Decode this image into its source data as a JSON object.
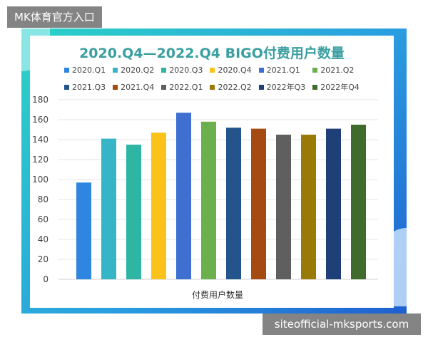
{
  "watermarks": {
    "top": "MK体育官方入口",
    "bottom": "siteofficial-mksports.com"
  },
  "chart_data": {
    "type": "bar",
    "title": "2020.Q4—2022.Q4 BIGO付费用户数量",
    "xlabel": "付费用户数量",
    "ylabel": "",
    "ylim": [
      0,
      180
    ],
    "yticks": [
      0,
      20,
      40,
      60,
      80,
      100,
      120,
      140,
      160,
      180
    ],
    "grid": true,
    "legend_position": "top",
    "series": [
      {
        "name": "2020.Q1",
        "value": 97,
        "color": "#2e86e0"
      },
      {
        "name": "2020.Q2",
        "value": 141,
        "color": "#35b5c5"
      },
      {
        "name": "2020.Q3",
        "value": 135,
        "color": "#2fb5a3"
      },
      {
        "name": "2020.Q4",
        "value": 147,
        "color": "#fbc21a"
      },
      {
        "name": "2021.Q1",
        "value": 167,
        "color": "#3f6fd0"
      },
      {
        "name": "2021.Q2",
        "value": 158,
        "color": "#6bb04d"
      },
      {
        "name": "2021.Q3",
        "value": 152,
        "color": "#23558c"
      },
      {
        "name": "2021.Q4",
        "value": 151,
        "color": "#a54a10"
      },
      {
        "name": "2022.Q1",
        "value": 145,
        "color": "#5f5f5f"
      },
      {
        "name": "2022.Q2",
        "value": 145,
        "color": "#997a06"
      },
      {
        "name": "2022年Q3",
        "value": 151,
        "color": "#1f3f78"
      },
      {
        "name": "2022年Q4",
        "value": 155,
        "color": "#3f6b2c"
      }
    ]
  }
}
